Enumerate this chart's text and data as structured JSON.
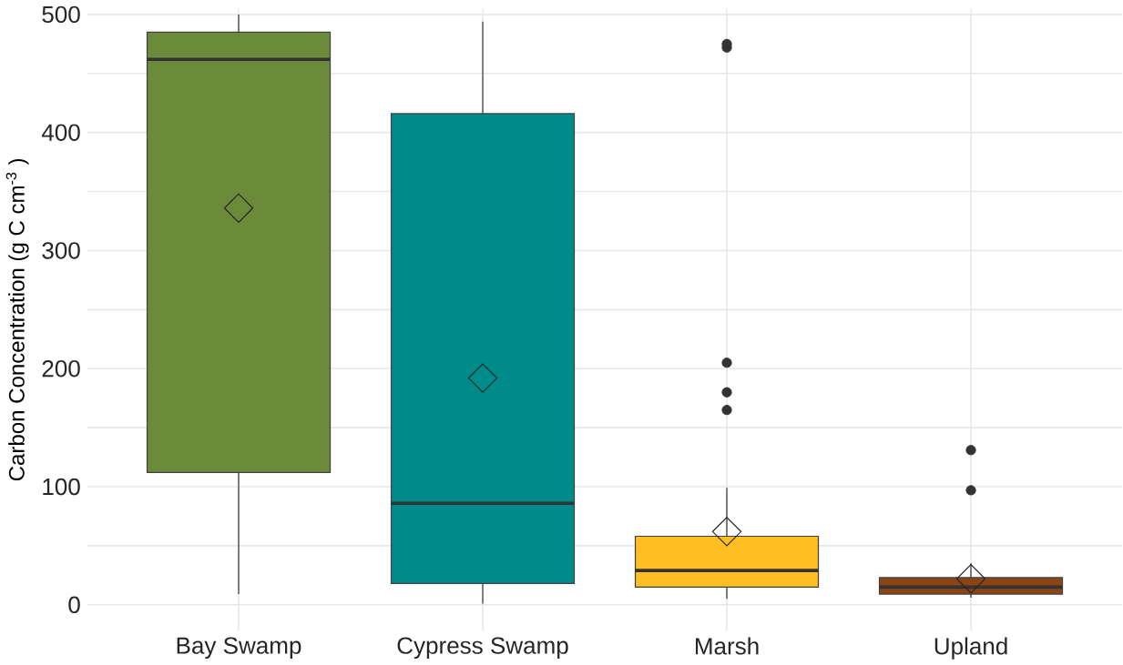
{
  "chart_data": {
    "type": "box",
    "ylabel": "Carbon Concentration (g C  cm$^{-3}$ )",
    "categories": [
      "Bay Swamp",
      "Cypress Swamp",
      "Marsh",
      "Upland"
    ],
    "colors": [
      "#6b8a3a",
      "#008b8b",
      "#ffbf22",
      "#8b4513"
    ],
    "boxes": [
      {
        "low": 9,
        "q1": 112,
        "median": 462,
        "q3": 485,
        "high": 500,
        "mean": 336
      },
      {
        "low": 1,
        "q1": 18,
        "median": 86,
        "q3": 416,
        "high": 494,
        "mean": 192
      },
      {
        "low": 5,
        "q1": 15,
        "median": 29,
        "q3": 58,
        "high": 99,
        "mean": 62,
        "outliers": [
          472,
          475,
          205,
          180,
          165
        ]
      },
      {
        "low": 6,
        "q1": 9,
        "median": 15,
        "q3": 23,
        "high": 35,
        "mean": 22,
        "outliers": [
          131,
          97
        ]
      }
    ],
    "ylim": [
      -22,
      505
    ],
    "yticks": [
      0,
      {
        "value": 50,
        "label": null
      },
      100,
      {
        "value": 150,
        "label": null
      },
      200,
      {
        "value": 250,
        "label": null
      },
      300,
      {
        "value": 350,
        "label": null
      },
      400,
      {
        "value": 450,
        "label": null
      },
      500
    ],
    "grid": true,
    "marker": "circle"
  }
}
